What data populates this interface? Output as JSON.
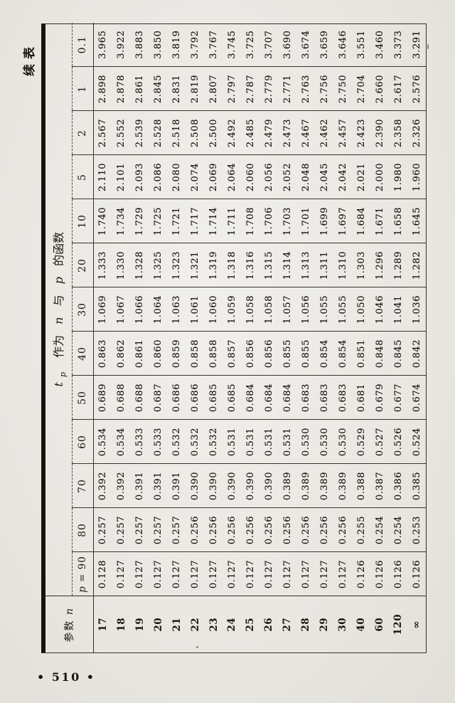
{
  "page": {
    "continued_label": "续表",
    "page_number": "• 510 •"
  },
  "table": {
    "corner": {
      "cjk": "参数",
      "var": "n"
    },
    "title": {
      "t": "t",
      "t_sub": "p",
      "part1": "作为",
      "var1": "n",
      "part2": "与",
      "var2": "p",
      "part3": "的函数"
    },
    "header": {
      "p_var": "p",
      "p_eq": " = ",
      "p_first": "90",
      "p_labels": [
        "80",
        "70",
        "60",
        "50",
        "40",
        "30",
        "20",
        "10",
        "5",
        "2",
        "1",
        "0.1"
      ]
    },
    "rows": [
      {
        "n": "17",
        "values": [
          "0.128",
          "0.257",
          "0.392",
          "0.534",
          "0.689",
          "0.863",
          "1.069",
          "1.333",
          "1.740",
          "2.110",
          "2.567",
          "2.898",
          "3.965"
        ]
      },
      {
        "n": "18",
        "values": [
          "0.127",
          "0.257",
          "0.392",
          "0.534",
          "0.688",
          "0.862",
          "1.067",
          "1.330",
          "1.734",
          "2.101",
          "2.552",
          "2.878",
          "3.922"
        ]
      },
      {
        "n": "19",
        "values": [
          "0.127",
          "0.257",
          "0.391",
          "0.533",
          "0.688",
          "0.861",
          "1.066",
          "1.328",
          "1.729",
          "2.093",
          "2.539",
          "2.861",
          "3.883"
        ]
      },
      {
        "n": "20",
        "values": [
          "0.127",
          "0.257",
          "0.391",
          "0.533",
          "0.687",
          "0.860",
          "1.064",
          "1.325",
          "1.725",
          "2.086",
          "2.528",
          "2.845",
          "3.850"
        ]
      },
      {
        "n": "21",
        "values": [
          "0.127",
          "0.257",
          "0.391",
          "0.532",
          "0.686",
          "0.859",
          "1.063",
          "1.323",
          "1.721",
          "2.080",
          "2.518",
          "2.831",
          "3.819"
        ]
      },
      {
        "n": "22",
        "values": [
          "0.127",
          "0.256",
          "0.390",
          "0.532",
          "0.686",
          "0.858",
          "1.061",
          "1.321",
          "1.717",
          "2.074",
          "2.508",
          "2.819",
          "3.792"
        ]
      },
      {
        "n": "23",
        "values": [
          "0.127",
          "0.256",
          "0.390",
          "0.532",
          "0.685",
          "0.858",
          "1.060",
          "1.319",
          "1.714",
          "2.069",
          "2.500",
          "2.807",
          "3.767"
        ]
      },
      {
        "n": "24",
        "values": [
          "0.127",
          "0.256",
          "0.390",
          "0.531",
          "0.685",
          "0.857",
          "1.059",
          "1.318",
          "1.711",
          "2.064",
          "2.492",
          "2.797",
          "3.745"
        ]
      },
      {
        "n": "25",
        "values": [
          "0.127",
          "0.256",
          "0.390",
          "0.531",
          "0.684",
          "0.856",
          "1.058",
          "1.316",
          "1.708",
          "2.060",
          "2.485",
          "2.787",
          "3.725"
        ]
      },
      {
        "n": "26",
        "values": [
          "0.127",
          "0.256",
          "0.390",
          "0.531",
          "0.684",
          "0.856",
          "1.058",
          "1.315",
          "1.706",
          "2.056",
          "2.479",
          "2.779",
          "3.707"
        ]
      },
      {
        "n": "27",
        "values": [
          "0.127",
          "0.256",
          "0.389",
          "0.531",
          "0.684",
          "0.855",
          "1.057",
          "1.314",
          "1.703",
          "2.052",
          "2.473",
          "2.771",
          "3.690"
        ]
      },
      {
        "n": "28",
        "values": [
          "0.127",
          "0.256",
          "0.389",
          "0.530",
          "0.683",
          "0.855",
          "1.056",
          "1.313",
          "1.701",
          "2.048",
          "2.467",
          "2.763",
          "3.674"
        ]
      },
      {
        "n": "29",
        "values": [
          "0.127",
          "0.256",
          "0.389",
          "0.530",
          "0.683",
          "0.854",
          "1.055",
          "1.311",
          "1.699",
          "2.045",
          "2.462",
          "2.756",
          "3.659"
        ]
      },
      {
        "n": "30",
        "values": [
          "0.127",
          "0.256",
          "0.389",
          "0.530",
          "0.683",
          "0.854",
          "1.055",
          "1.310",
          "1.697",
          "2.042",
          "2.457",
          "2.750",
          "3.646"
        ]
      },
      {
        "n": "40",
        "values": [
          "0.126",
          "0.255",
          "0.388",
          "0.529",
          "0.681",
          "0.851",
          "1.050",
          "1.303",
          "1.684",
          "2.021",
          "2.423",
          "2.704",
          "3.551"
        ]
      },
      {
        "n": "60",
        "values": [
          "0.126",
          "0.254",
          "0.387",
          "0.527",
          "0.679",
          "0.848",
          "1.046",
          "1.296",
          "1.671",
          "2.000",
          "2.390",
          "2.660",
          "3.460"
        ]
      },
      {
        "n": "120",
        "values": [
          "0.126",
          "0.254",
          "0.386",
          "0.526",
          "0.677",
          "0.845",
          "1.041",
          "1.289",
          "1.658",
          "1.980",
          "2.358",
          "2.617",
          "3.373"
        ]
      },
      {
        "n": "∞",
        "values": [
          "0.126",
          "0.253",
          "0.385",
          "0.524",
          "0.674",
          "0.842",
          "1.036",
          "1.282",
          "1.645",
          "1.960",
          "2.326",
          "2.576",
          "3.291"
        ]
      }
    ]
  }
}
